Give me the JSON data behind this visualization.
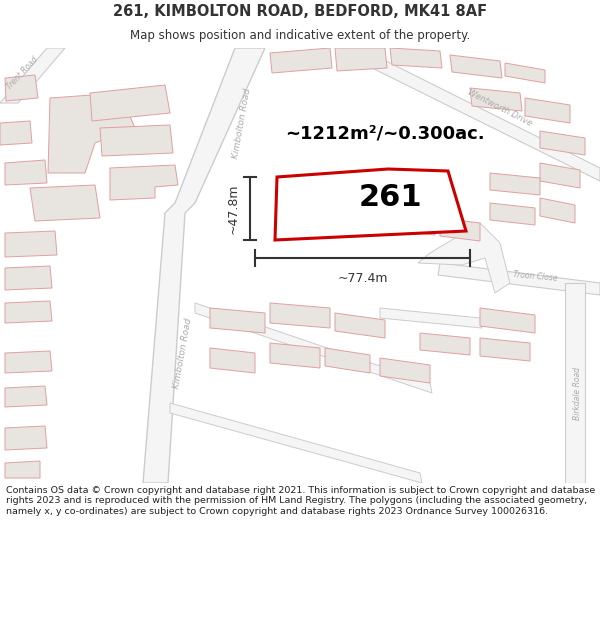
{
  "title": "261, KIMBOLTON ROAD, BEDFORD, MK41 8AF",
  "subtitle": "Map shows position and indicative extent of the property.",
  "footer": "Contains OS data © Crown copyright and database right 2021. This information is subject to Crown copyright and database rights 2023 and is reproduced with the permission of HM Land Registry. The polygons (including the associated geometry, namely x, y co-ordinates) are subject to Crown copyright and database rights 2023 Ordnance Survey 100026316.",
  "area_text": "~1212m²/~0.300ac.",
  "label_261": "261",
  "dim_width": "~77.4m",
  "dim_height": "~47.8m",
  "map_bg": "#f7f5f2",
  "road_fill": "#ffffff",
  "road_outline": "#e8a8a8",
  "building_fill": "#e8e4e0",
  "building_outline": "#e0a0a0",
  "highlight_color": "#cc0000",
  "highlight_fill": "#ffffff",
  "road_label_color": "#aaaaaa",
  "dim_color": "#333333",
  "title_color": "#333333",
  "fig_width": 6.0,
  "fig_height": 6.25
}
